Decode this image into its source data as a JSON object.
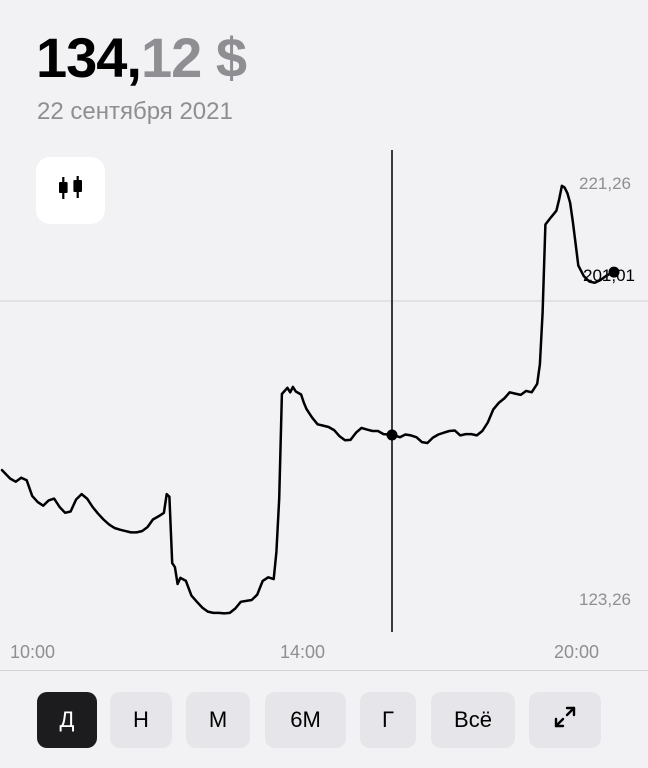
{
  "price": {
    "integer": "134,",
    "fraction": "12 $"
  },
  "date": "22 сентября 2021",
  "chart_data": {
    "type": "line",
    "max_label": "221,26",
    "min_label": "123,26",
    "last_label": "201,01",
    "x_ticks": [
      "10:00",
      "14:00",
      "20:00"
    ],
    "ylim": [
      123.26,
      221.26
    ],
    "series": [
      {
        "values": [
          [
            0,
            156.5
          ],
          [
            6,
            154.6
          ],
          [
            10,
            153.9
          ],
          [
            14,
            154.8
          ],
          [
            18,
            154.2
          ],
          [
            22,
            150.7
          ],
          [
            26,
            149.3
          ],
          [
            30,
            148.5
          ],
          [
            34,
            149.7
          ],
          [
            38,
            150.1
          ],
          [
            42,
            148.2
          ],
          [
            46,
            146.9
          ],
          [
            50,
            147.2
          ],
          [
            54,
            149.9
          ],
          [
            58,
            151.1
          ],
          [
            62,
            150.1
          ],
          [
            66,
            148.2
          ],
          [
            70,
            146.7
          ],
          [
            74,
            145.4
          ],
          [
            78,
            144.3
          ],
          [
            82,
            143.5
          ],
          [
            86,
            143.1
          ],
          [
            90,
            142.8
          ],
          [
            94,
            142.5
          ],
          [
            98,
            142.5
          ],
          [
            102,
            142.8
          ],
          [
            106,
            143.7
          ],
          [
            110,
            145.4
          ],
          [
            114,
            146.1
          ],
          [
            118,
            146.9
          ],
          [
            120,
            151.1
          ],
          [
            122,
            150.5
          ],
          [
            124,
            135.6
          ],
          [
            126,
            134.7
          ],
          [
            128,
            130.9
          ],
          [
            130,
            132.3
          ],
          [
            134,
            131.6
          ],
          [
            138,
            128.3
          ],
          [
            142,
            126.9
          ],
          [
            146,
            125.6
          ],
          [
            150,
            124.7
          ],
          [
            154,
            124.4
          ],
          [
            158,
            124.4
          ],
          [
            162,
            124.3
          ],
          [
            166,
            124.4
          ],
          [
            170,
            125.4
          ],
          [
            174,
            126.9
          ],
          [
            178,
            127.1
          ],
          [
            182,
            127.3
          ],
          [
            186,
            128.5
          ],
          [
            190,
            131.6
          ],
          [
            194,
            132.4
          ],
          [
            198,
            132.0
          ],
          [
            200,
            138.1
          ],
          [
            202,
            150.1
          ],
          [
            204,
            173.6
          ],
          [
            208,
            175.0
          ],
          [
            210,
            174.0
          ],
          [
            212,
            175.2
          ],
          [
            214,
            174.2
          ],
          [
            218,
            173.5
          ],
          [
            220,
            171.6
          ],
          [
            222,
            170.2
          ],
          [
            226,
            168.3
          ],
          [
            230,
            166.8
          ],
          [
            234,
            166.5
          ],
          [
            238,
            166.2
          ],
          [
            242,
            165.5
          ],
          [
            246,
            164.1
          ],
          [
            250,
            163.2
          ],
          [
            254,
            163.3
          ],
          [
            258,
            164.9
          ],
          [
            262,
            166.0
          ],
          [
            266,
            165.6
          ],
          [
            270,
            165.3
          ],
          [
            274,
            165.3
          ],
          [
            278,
            164.6
          ],
          [
            282,
            164.5
          ],
          [
            286,
            164.3
          ],
          [
            290,
            163.9
          ],
          [
            294,
            164.5
          ],
          [
            298,
            164.3
          ],
          [
            302,
            163.9
          ],
          [
            306,
            162.8
          ],
          [
            310,
            162.6
          ],
          [
            314,
            163.8
          ],
          [
            318,
            164.5
          ],
          [
            322,
            164.9
          ],
          [
            326,
            165.3
          ],
          [
            330,
            165.4
          ],
          [
            334,
            164.3
          ],
          [
            338,
            164.6
          ],
          [
            342,
            164.6
          ],
          [
            346,
            164.3
          ],
          [
            350,
            165.3
          ],
          [
            354,
            167.2
          ],
          [
            358,
            170.1
          ],
          [
            362,
            171.6
          ],
          [
            366,
            172.6
          ],
          [
            370,
            174.0
          ],
          [
            374,
            173.7
          ],
          [
            378,
            173.4
          ],
          [
            382,
            174.3
          ],
          [
            386,
            174.0
          ],
          [
            390,
            175.9
          ],
          [
            392,
            180.3
          ],
          [
            394,
            191.9
          ],
          [
            396,
            211.7
          ],
          [
            400,
            213.3
          ],
          [
            404,
            214.8
          ],
          [
            406,
            217.3
          ],
          [
            408,
            220.4
          ],
          [
            410,
            220.0
          ],
          [
            412,
            218.8
          ],
          [
            414,
            216.6
          ],
          [
            416,
            212.4
          ],
          [
            418,
            207.4
          ],
          [
            420,
            202.5
          ],
          [
            424,
            200.1
          ],
          [
            428,
            198.9
          ],
          [
            432,
            198.6
          ],
          [
            436,
            199.2
          ],
          [
            440,
            200.1
          ],
          [
            444,
            200.8
          ],
          [
            446,
            201.0
          ]
        ]
      }
    ]
  },
  "periods": [
    "Д",
    "Н",
    "М",
    "6М",
    "Г",
    "Всё"
  ],
  "active_period": "Д",
  "icons": {
    "candles": "candlestick-icon",
    "expand": "expand-icon"
  },
  "colors": {
    "accent": "#000000",
    "muted": "#8e8e93",
    "background": "#f2f2f4",
    "button": "#e5e5ea",
    "button_active": "#1c1c1e"
  }
}
